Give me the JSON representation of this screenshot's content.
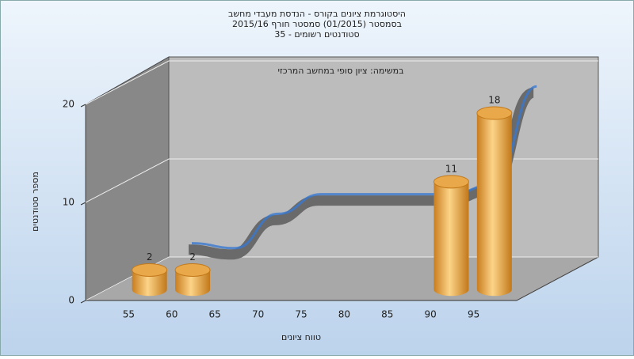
{
  "chart_data": {
    "type": "bar3d",
    "title": "היסטוגרמת ציונים בקורס - הנדסת מעבדי מחשב",
    "subtitle": "בסמסטר (01/2015) סמסטר חורף 2015/16",
    "subtitle2": "סטודנטים רשומים - 35",
    "annotation": "במשימה: ציון סופי במחשב המרכזי",
    "xlabel": "טווח ציונים",
    "ylabel": "מספר סטודנטים",
    "categories": [
      "55",
      "60",
      "65",
      "70",
      "75",
      "80",
      "85",
      "90",
      "95"
    ],
    "series": [
      {
        "type": "bar",
        "color": "#e8a540",
        "values": [
          2,
          2,
          0,
          0,
          0,
          0,
          0,
          11,
          18
        ]
      },
      {
        "type": "ribbon",
        "color": "#6a6a6a",
        "values": [
          2,
          1.5,
          5,
          7,
          7,
          7,
          7,
          8,
          18
        ]
      }
    ],
    "ylim": [
      0,
      20
    ],
    "yticks": [
      0,
      10,
      20
    ],
    "grid": true
  }
}
